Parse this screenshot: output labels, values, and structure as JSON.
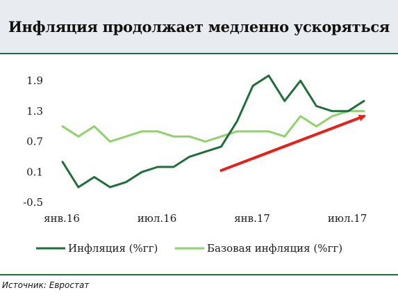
{
  "header": {
    "title": "Инфляция продолжает медленно ускоряться"
  },
  "footer": {
    "source": "Источник: Евростат"
  },
  "chart_data": {
    "type": "line",
    "title": "Инфляция продолжает медленно ускоряться",
    "x_tick_labels": [
      "янв.16",
      "июл.16",
      "янв.17",
      "июл.17"
    ],
    "x_tick_indices": [
      0,
      6,
      12,
      18
    ],
    "y_ticks": [
      1.9,
      1.3,
      0.7,
      0.1,
      -0.5
    ],
    "ylim": [
      -0.5,
      1.9
    ],
    "grid": false,
    "legend_position": "bottom",
    "colors": {
      "inflation": "#1e6e3a",
      "core": "#8fd16a",
      "arrow": "#e8201a"
    },
    "series": [
      {
        "name": "Инфляция (%гг)",
        "color": "#1e6e3a",
        "values": [
          0.3,
          -0.2,
          0.0,
          -0.2,
          -0.1,
          0.1,
          0.2,
          0.2,
          0.4,
          0.5,
          0.6,
          1.1,
          1.8,
          2.0,
          1.5,
          1.9,
          1.4,
          1.3,
          1.3,
          1.5
        ]
      },
      {
        "name": "Базовая инфляция (%гг)",
        "color": "#8fd16a",
        "values": [
          1.0,
          0.8,
          1.0,
          0.7,
          0.8,
          0.9,
          0.9,
          0.8,
          0.8,
          0.7,
          0.8,
          0.9,
          0.9,
          0.9,
          0.8,
          1.2,
          1.0,
          1.2,
          1.3,
          1.3
        ]
      }
    ],
    "annotation": {
      "type": "arrow",
      "from": [
        10,
        0.13
      ],
      "to": [
        19,
        1.2
      ]
    }
  }
}
